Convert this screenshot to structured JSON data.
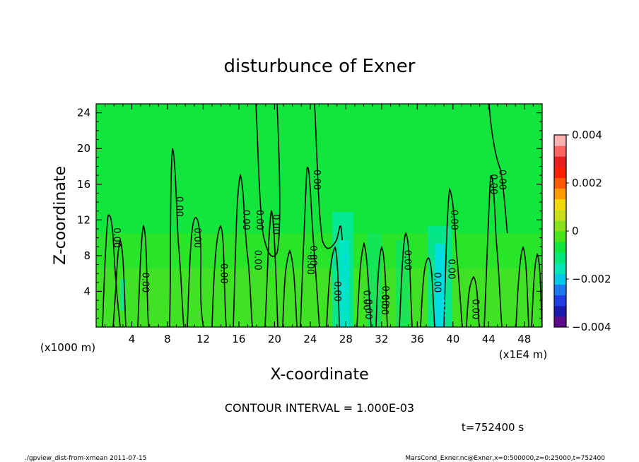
{
  "chart_data": {
    "type": "heatmap",
    "title": "disturbunce of Exner",
    "xlabel": "X-coordinate",
    "ylabel": "Z-coordinate",
    "x_unit_label": "(x1E4 m)",
    "y_unit_label": "(x1000 m)",
    "x_ticks": [
      4,
      8,
      12,
      16,
      20,
      24,
      28,
      32,
      36,
      40,
      44,
      48
    ],
    "y_ticks": [
      4,
      8,
      12,
      16,
      20,
      24
    ],
    "xlim": [
      0,
      50
    ],
    "ylim": [
      0,
      25
    ],
    "background_value": 0,
    "colorbar": {
      "range": [
        -0.004,
        0.004
      ],
      "tick_labels": [
        "0.004",
        "0.002",
        "0",
        "−0.002",
        "−0.004"
      ],
      "tick_values": [
        0.004,
        0.002,
        0,
        -0.002,
        -0.004
      ],
      "colors": [
        "#5a0a8a",
        "#1a1ab0",
        "#1f3de0",
        "#1e78f0",
        "#00c8e6",
        "#00e6b4",
        "#00e87a",
        "#10e63c",
        "#46e41a",
        "#8ae01c",
        "#c8e01a",
        "#f0d80a",
        "#ff9a00",
        "#ff5a00",
        "#ff1e00",
        "#e61e1e",
        "#ff6464",
        "#ffb0b0"
      ]
    },
    "contour_interval_label": "CONTOUR INTERVAL = 1.000E-03",
    "contour_labels": [
      "0.00",
      "0.00",
      "0.00",
      "0.00",
      "0.00",
      "0.00",
      "0.00",
      "0.00",
      "0.00",
      "0.00",
      "0.00",
      "0.00",
      "0.00",
      "0.00",
      "0.00",
      "0.00",
      "0.00",
      "0.00",
      "0.00",
      "0.00",
      "0.00",
      "0.00",
      "0.00",
      "0.00"
    ],
    "negative_regions_x": [
      27.5,
      38.5
    ]
  },
  "time_label": "t=752400 s",
  "footer_left": "./gpview_dist-from-xmean  2011-07-15",
  "footer_right": "MarsCond_Exner.nc@Exner,x=0:500000,z=0:25000,t=752400"
}
